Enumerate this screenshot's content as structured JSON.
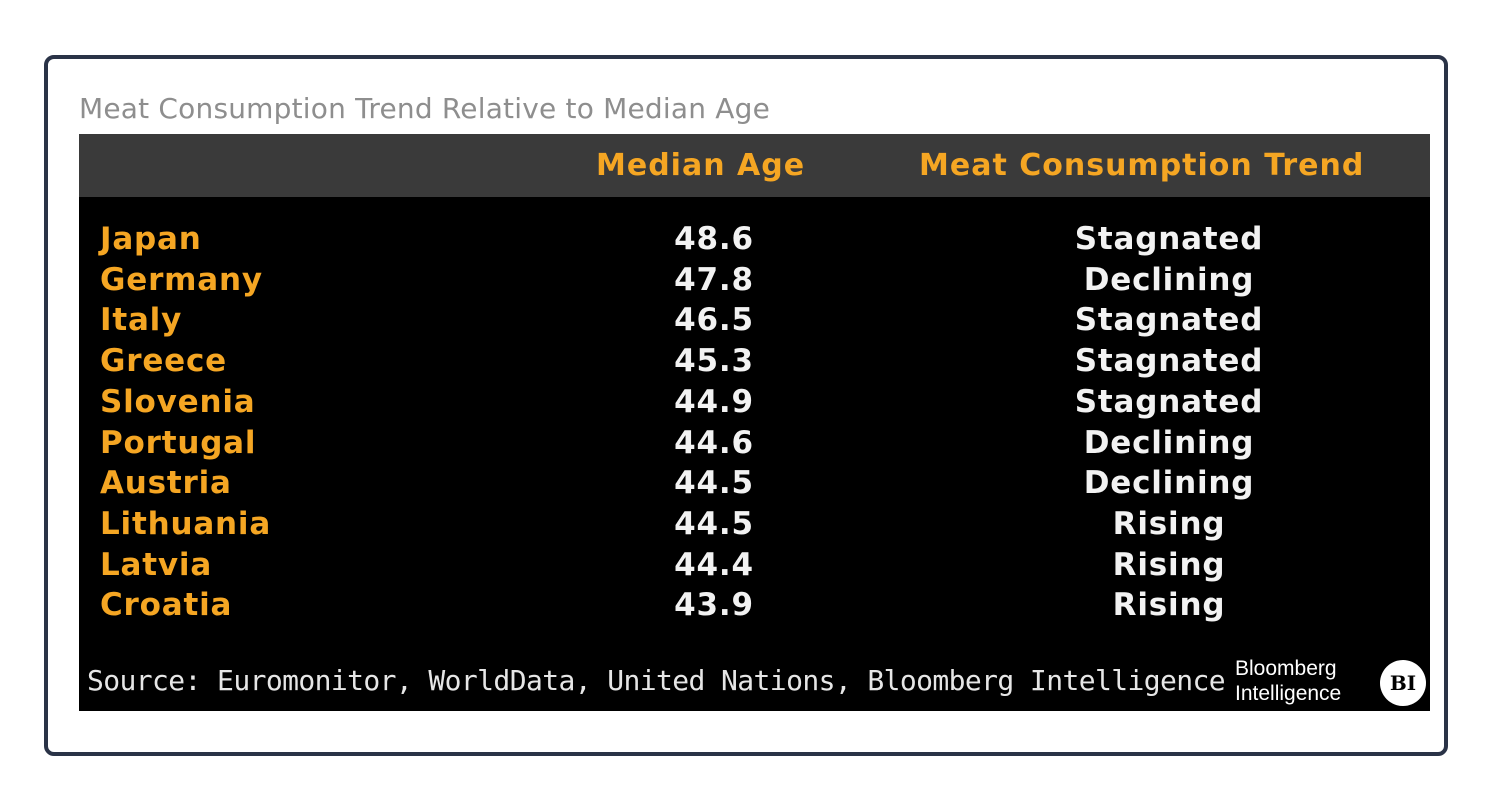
{
  "chart_data": {
    "type": "table",
    "title": "Meat Consumption Trend Relative to Median Age",
    "columns": [
      "",
      "Median Age",
      "Meat Consumption Trend"
    ],
    "rows": [
      {
        "country": "Japan",
        "median_age": "48.6",
        "trend": "Stagnated"
      },
      {
        "country": "Germany",
        "median_age": "47.8",
        "trend": "Declining"
      },
      {
        "country": "Italy",
        "median_age": "46.5",
        "trend": "Stagnated"
      },
      {
        "country": "Greece",
        "median_age": "45.3",
        "trend": "Stagnated"
      },
      {
        "country": "Slovenia",
        "median_age": "44.9",
        "trend": "Stagnated"
      },
      {
        "country": "Portugal",
        "median_age": "44.6",
        "trend": "Declining"
      },
      {
        "country": "Austria",
        "median_age": "44.5",
        "trend": "Declining"
      },
      {
        "country": "Lithuania",
        "median_age": "44.5",
        "trend": "Rising"
      },
      {
        "country": "Latvia",
        "median_age": "44.4",
        "trend": "Rising"
      },
      {
        "country": "Croatia",
        "median_age": "43.9",
        "trend": "Rising"
      }
    ],
    "source": "Source: Euromonitor, WorldData, United Nations, Bloomberg Intelligence"
  },
  "brand": {
    "line1": "Bloomberg",
    "line2": "Intelligence",
    "logo_text": "BI"
  },
  "colors": {
    "accent": "#f5a623",
    "value_text": "#f2f2f2",
    "panel_bg": "#000000",
    "header_bg": "#3a3a3a",
    "frame_border": "#2a3347",
    "title_text": "#8e8e8e"
  }
}
